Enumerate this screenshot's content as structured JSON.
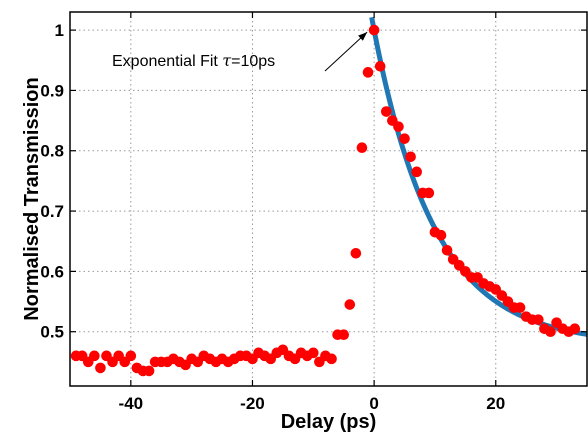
{
  "chart_data": {
    "type": "scatter",
    "xlabel": "Delay (ps)",
    "ylabel": "Normalised Transmission",
    "xlim": [
      -50,
      35
    ],
    "ylim": [
      0.41,
      1.03
    ],
    "xticks": [
      -40,
      -20,
      0,
      20
    ],
    "yticks": [
      0.5,
      0.6,
      0.7,
      0.8,
      0.9,
      1
    ],
    "xtick_labels": [
      "-40",
      "-20",
      "0",
      "20"
    ],
    "ytick_labels": [
      "0.5",
      "0.6",
      "0.7",
      "0.8",
      "0.9",
      "1"
    ],
    "grid": true,
    "annotation": {
      "prefix": "Exponential Fit ",
      "tau": "τ",
      "suffix": "=10ps",
      "points_to": [
        0,
        1.0
      ]
    },
    "series": [
      {
        "kind": "points",
        "color": "#ff0000",
        "x": [
          -49,
          -48,
          -47,
          -46,
          -45,
          -44,
          -43,
          -42,
          -41,
          -40,
          -39,
          -38,
          -37,
          -36,
          -35,
          -34,
          -33,
          -32,
          -31,
          -30,
          -29,
          -28,
          -27,
          -26,
          -25,
          -24,
          -23,
          -22,
          -21,
          -20,
          -19,
          -18,
          -17,
          -16,
          -15,
          -14,
          -13,
          -12,
          -11,
          -10,
          -9,
          -8,
          -7,
          -6,
          -5,
          -4,
          -3,
          -2,
          -1,
          0,
          1,
          2,
          3,
          4,
          5,
          6,
          7,
          8,
          9,
          10,
          11,
          12,
          13,
          14,
          15,
          16,
          17,
          18,
          19,
          20,
          21,
          22,
          23,
          24,
          25,
          26,
          27,
          28,
          29,
          30,
          31,
          32,
          33
        ],
        "y": [
          0.46,
          0.46,
          0.45,
          0.46,
          0.44,
          0.46,
          0.45,
          0.46,
          0.45,
          0.46,
          0.44,
          0.435,
          0.435,
          0.45,
          0.45,
          0.45,
          0.455,
          0.45,
          0.445,
          0.455,
          0.45,
          0.46,
          0.455,
          0.45,
          0.455,
          0.45,
          0.455,
          0.46,
          0.46,
          0.455,
          0.465,
          0.46,
          0.455,
          0.465,
          0.47,
          0.46,
          0.455,
          0.465,
          0.46,
          0.465,
          0.45,
          0.46,
          0.455,
          0.495,
          0.495,
          0.545,
          0.63,
          0.805,
          0.93,
          1.0,
          0.94,
          0.865,
          0.85,
          0.84,
          0.82,
          0.79,
          0.765,
          0.73,
          0.73,
          0.665,
          0.66,
          0.635,
          0.62,
          0.61,
          0.6,
          0.59,
          0.59,
          0.58,
          0.575,
          0.57,
          0.56,
          0.55,
          0.54,
          0.54,
          0.525,
          0.52,
          0.52,
          0.505,
          0.5,
          0.515,
          0.505,
          0.5,
          0.505
        ]
      },
      {
        "kind": "fit",
        "color": "#1f77b4",
        "tau": 10,
        "amplitude": 0.52,
        "offset": 0.48,
        "x_start": -0.4,
        "x_end": 35
      }
    ]
  }
}
